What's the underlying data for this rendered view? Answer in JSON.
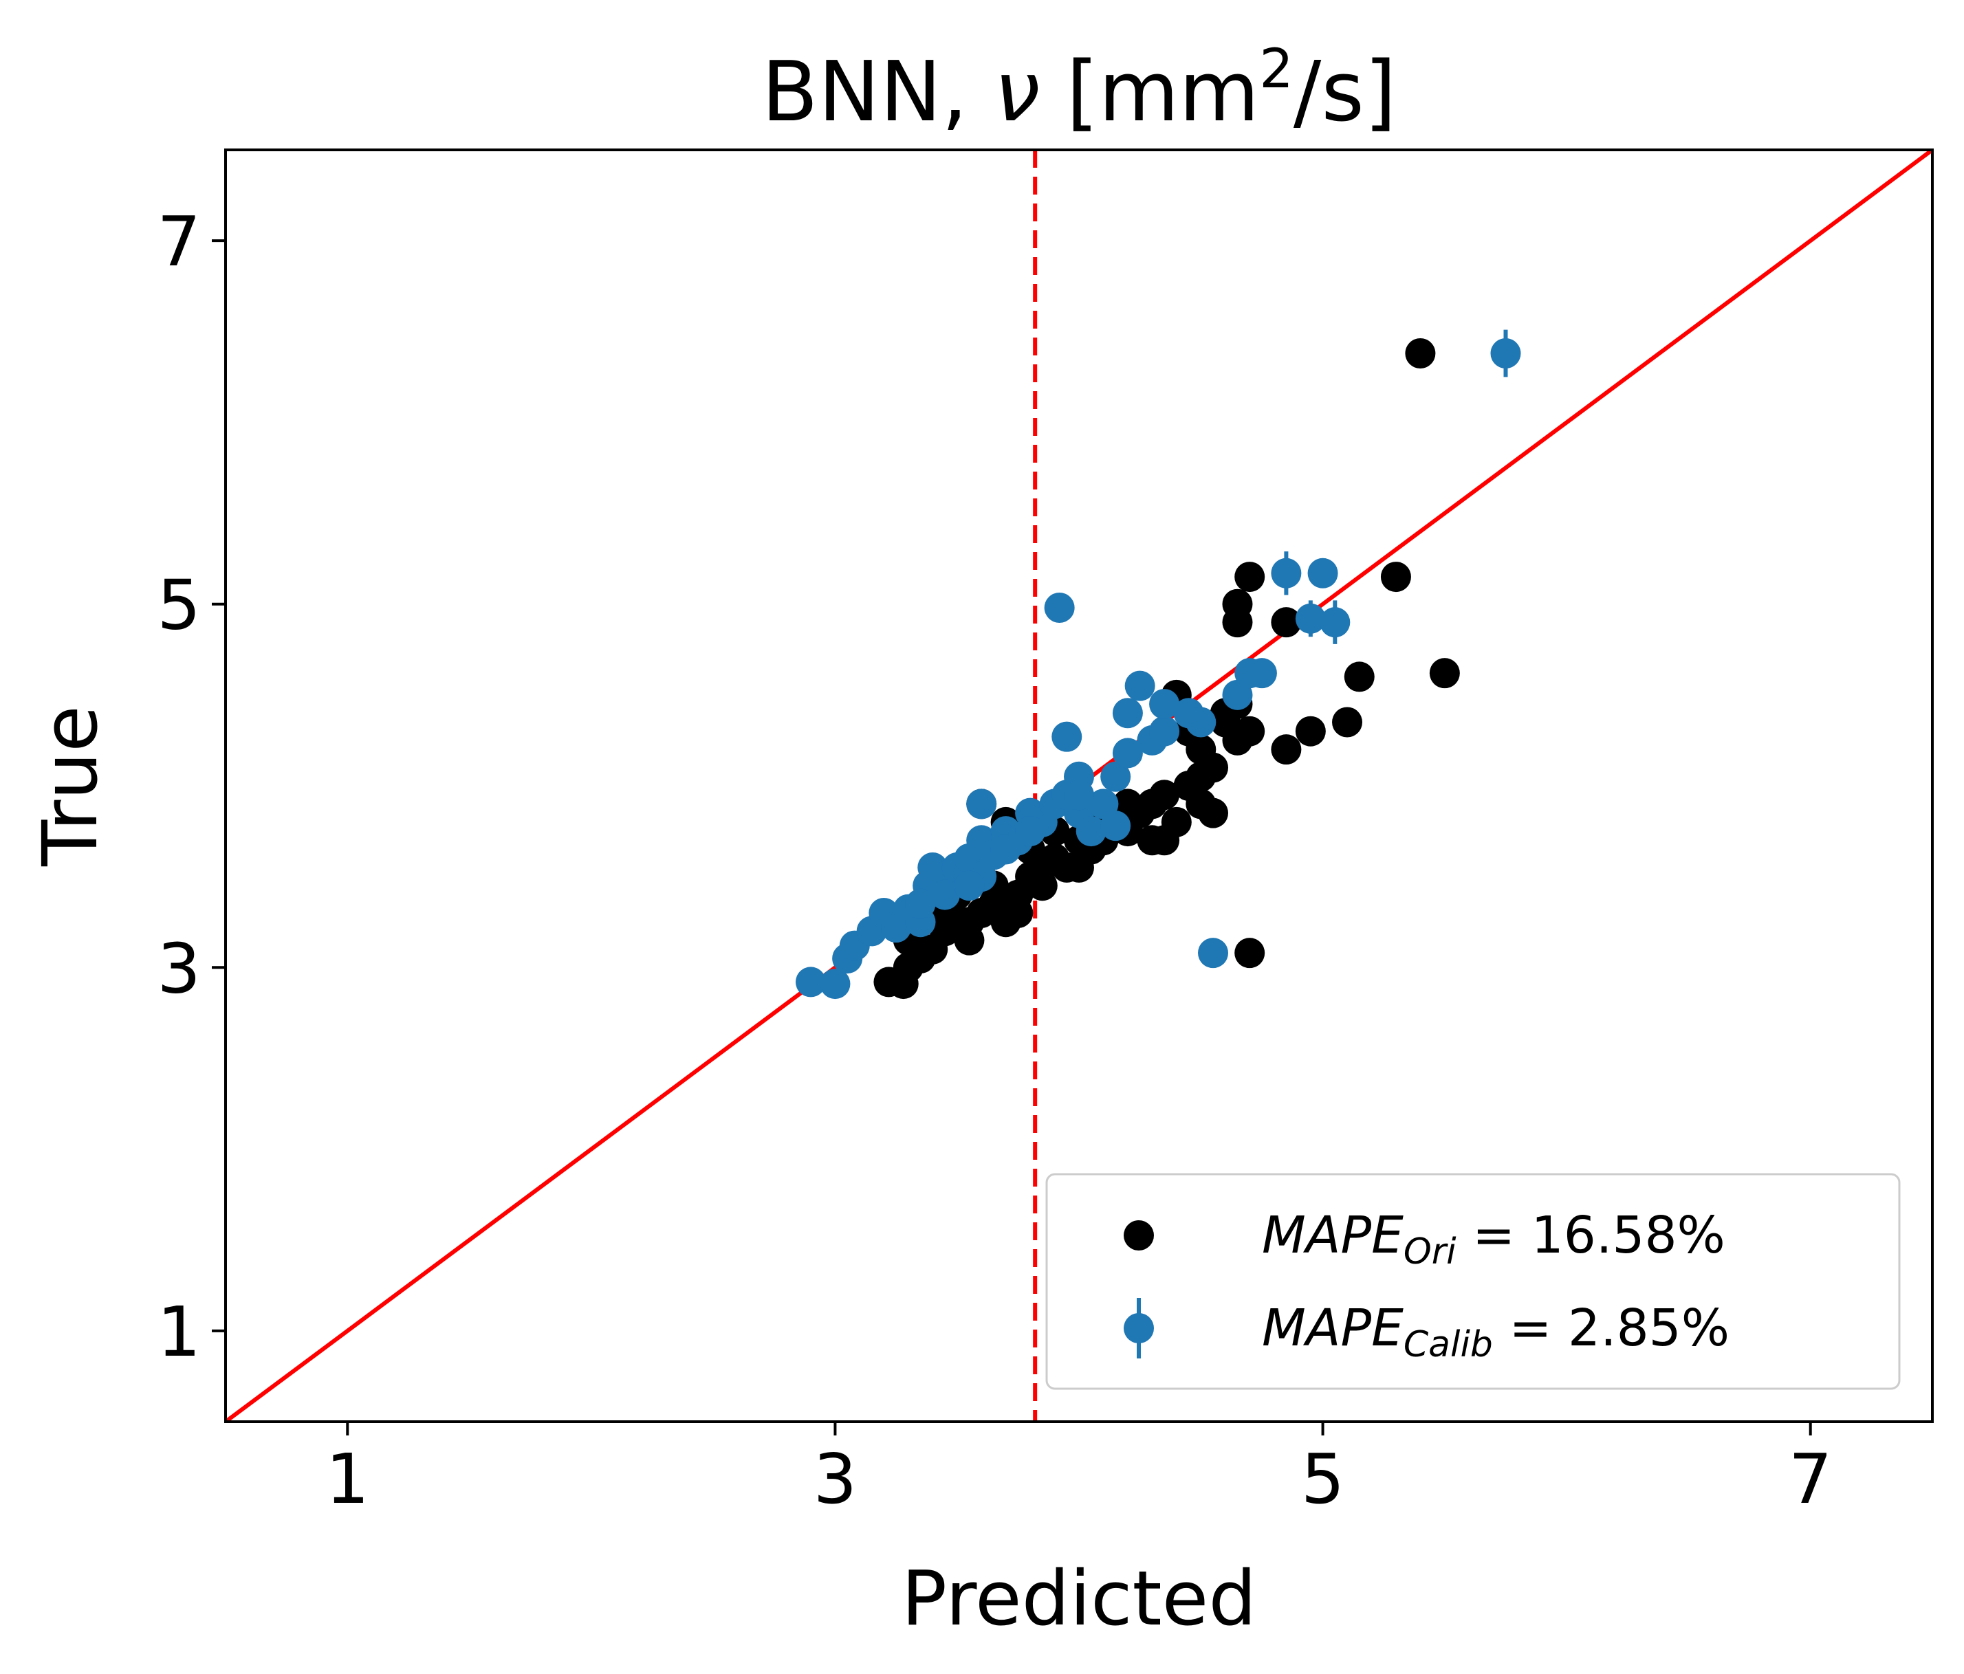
{
  "chart_data": {
    "type": "scatter",
    "title": {
      "prefix": "BNN, ",
      "symbol": "ν",
      "unit_open": " [mm",
      "unit_sup": "2",
      "unit_close": "/s]"
    },
    "xlabel": "Predicted",
    "ylabel": "True",
    "xlim": [
      0.5,
      7.5
    ],
    "ylim": [
      0.5,
      7.5
    ],
    "xticks": [
      1,
      3,
      5,
      7
    ],
    "yticks": [
      1,
      3,
      5,
      7
    ],
    "xtick_labels": [
      "1",
      "3",
      "5",
      "7"
    ],
    "ytick_labels": [
      "1",
      "3",
      "5",
      "7"
    ],
    "grid": false,
    "legend_position": "lower right",
    "reference_lines": {
      "identity_color": "#ff0000",
      "vline_x": 3.82,
      "vline_color": "#ff0000",
      "vline_style": "dashed"
    },
    "series": [
      {
        "name": "MAPE_Ori",
        "legend": {
          "base": "MAPE",
          "sub": "Ori",
          "value": " = 16.58%"
        },
        "color": "#000000",
        "marker": "circle",
        "points": [
          [
            3.22,
            2.92
          ],
          [
            3.28,
            2.91
          ],
          [
            3.3,
            3.0
          ],
          [
            3.35,
            3.05
          ],
          [
            3.4,
            3.1
          ],
          [
            3.45,
            3.2
          ],
          [
            3.5,
            3.25
          ],
          [
            3.55,
            3.15
          ],
          [
            3.6,
            3.3
          ],
          [
            3.65,
            3.35
          ],
          [
            3.7,
            3.25
          ],
          [
            3.75,
            3.4
          ],
          [
            3.8,
            3.5
          ],
          [
            3.85,
            3.55
          ],
          [
            3.9,
            3.6
          ],
          [
            3.95,
            3.55
          ],
          [
            4.0,
            3.7
          ],
          [
            4.05,
            3.65
          ],
          [
            4.1,
            3.75
          ],
          [
            4.15,
            3.8
          ],
          [
            4.2,
            3.9
          ],
          [
            4.25,
            3.85
          ],
          [
            4.3,
            3.7
          ],
          [
            4.35,
            3.95
          ],
          [
            4.4,
            3.8
          ],
          [
            4.45,
            4.0
          ],
          [
            4.5,
            3.9
          ],
          [
            4.55,
            3.85
          ],
          [
            4.5,
            4.2
          ],
          [
            4.45,
            4.3
          ],
          [
            4.4,
            4.5
          ],
          [
            4.6,
            4.4
          ],
          [
            4.65,
            4.45
          ],
          [
            4.7,
            4.3
          ],
          [
            4.65,
            4.9
          ],
          [
            4.65,
            5.0
          ],
          [
            4.7,
            5.15
          ],
          [
            4.85,
            4.9
          ],
          [
            4.85,
            4.2
          ],
          [
            4.95,
            4.3
          ],
          [
            5.1,
            4.35
          ],
          [
            5.15,
            4.6
          ],
          [
            5.3,
            5.15
          ],
          [
            5.4,
            6.38
          ],
          [
            5.5,
            4.62
          ],
          [
            4.7,
            3.08
          ],
          [
            3.6,
            3.9
          ],
          [
            3.7,
            3.8
          ],
          [
            3.4,
            3.3
          ],
          [
            3.5,
            3.4
          ],
          [
            3.3,
            3.15
          ],
          [
            3.45,
            3.35
          ],
          [
            3.65,
            3.45
          ],
          [
            3.8,
            3.65
          ],
          [
            3.9,
            3.75
          ],
          [
            4.0,
            3.55
          ],
          [
            4.1,
            3.7
          ],
          [
            4.2,
            3.75
          ],
          [
            4.3,
            3.9
          ],
          [
            4.35,
            3.7
          ],
          [
            4.55,
            4.1
          ],
          [
            4.6,
            4.35
          ],
          [
            4.65,
            4.25
          ],
          [
            4.5,
            4.05
          ],
          [
            3.55,
            3.25
          ],
          [
            3.75,
            3.3
          ],
          [
            3.35,
            3.1
          ],
          [
            3.85,
            3.45
          ],
          [
            4.05,
            3.8
          ],
          [
            4.15,
            3.85
          ]
        ]
      },
      {
        "name": "MAPE_Calib",
        "legend": {
          "base": "MAPE",
          "sub": "Calib",
          "value": " = 2.85%"
        },
        "color": "#1f77b4",
        "marker": "circle-errorbar",
        "points": [
          [
            2.9,
            2.92,
            0.03
          ],
          [
            3.0,
            2.91,
            0.03
          ],
          [
            3.05,
            3.05,
            0.04
          ],
          [
            3.08,
            3.12,
            0.04
          ],
          [
            3.15,
            3.2,
            0.04
          ],
          [
            3.2,
            3.3,
            0.05
          ],
          [
            3.25,
            3.22,
            0.05
          ],
          [
            3.3,
            3.32,
            0.05
          ],
          [
            3.35,
            3.25,
            0.05
          ],
          [
            3.38,
            3.45,
            0.05
          ],
          [
            3.4,
            3.55,
            0.05
          ],
          [
            3.45,
            3.5,
            0.05
          ],
          [
            3.5,
            3.55,
            0.05
          ],
          [
            3.55,
            3.6,
            0.05
          ],
          [
            3.6,
            3.5,
            0.05
          ],
          [
            3.6,
            3.7,
            0.05
          ],
          [
            3.65,
            3.62,
            0.05
          ],
          [
            3.7,
            3.75,
            0.05
          ],
          [
            3.75,
            3.7,
            0.05
          ],
          [
            3.8,
            3.85,
            0.05
          ],
          [
            3.85,
            3.8,
            0.05
          ],
          [
            3.9,
            3.9,
            0.05
          ],
          [
            3.95,
            3.95,
            0.05
          ],
          [
            4.0,
            3.85,
            0.05
          ],
          [
            4.0,
            4.05,
            0.05
          ],
          [
            4.05,
            3.75,
            0.05
          ],
          [
            4.1,
            3.9,
            0.05
          ],
          [
            4.15,
            3.78,
            0.05
          ],
          [
            4.15,
            4.05,
            0.05
          ],
          [
            4.2,
            4.18,
            0.05
          ],
          [
            4.2,
            4.4,
            0.05
          ],
          [
            4.25,
            4.55,
            0.05
          ],
          [
            4.3,
            4.25,
            0.06
          ],
          [
            4.35,
            4.3,
            0.06
          ],
          [
            4.35,
            4.45,
            0.06
          ],
          [
            4.45,
            4.4,
            0.06
          ],
          [
            4.5,
            4.35,
            0.06
          ],
          [
            4.65,
            4.5,
            0.07
          ],
          [
            4.7,
            4.62,
            0.08
          ],
          [
            4.75,
            4.62,
            0.08
          ],
          [
            4.85,
            5.17,
            0.12
          ],
          [
            4.95,
            4.92,
            0.1
          ],
          [
            5.0,
            5.17,
            0.08
          ],
          [
            5.05,
            4.9,
            0.12
          ],
          [
            5.75,
            6.38,
            0.13
          ],
          [
            3.95,
            4.27,
            0.05
          ],
          [
            3.92,
            4.98,
            0.05
          ],
          [
            3.6,
            3.9,
            0.05
          ],
          [
            4.55,
            3.08,
            0.04
          ],
          [
            3.45,
            3.4,
            0.05
          ],
          [
            3.55,
            3.45,
            0.05
          ],
          [
            3.7,
            3.65,
            0.05
          ],
          [
            3.8,
            3.75,
            0.05
          ],
          [
            4.0,
            3.95,
            0.05
          ],
          [
            3.35,
            3.35,
            0.05
          ]
        ]
      }
    ]
  }
}
